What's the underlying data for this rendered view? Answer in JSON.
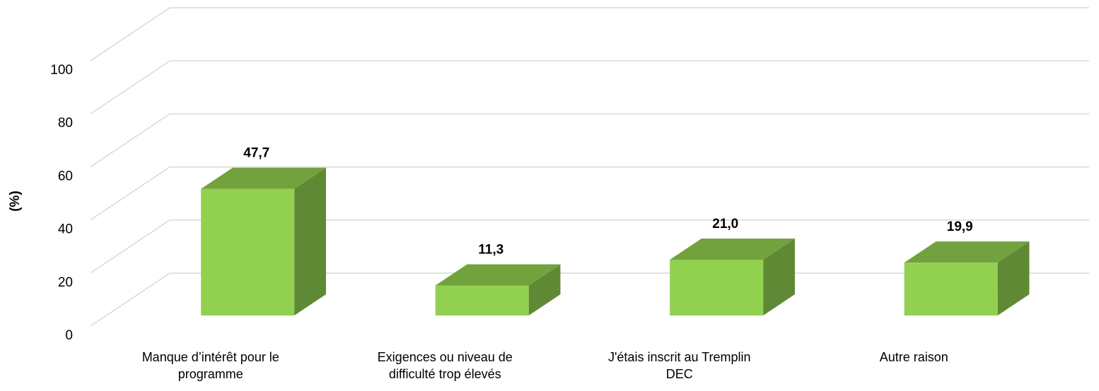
{
  "chart_data": {
    "type": "bar3d",
    "y_label": "(%)",
    "categories": [
      "Manque d’intérêt pour le programme",
      "Exigences ou niveau de difficulté trop élevés",
      "J'étais inscrit au Tremplin DEC",
      "Autre raison"
    ],
    "values": [
      47.7,
      11.3,
      21.0,
      19.9
    ],
    "value_labels": [
      "47,7",
      "11,3",
      "21,0",
      "19,9"
    ],
    "color": "#92d050",
    "ylim": [
      0,
      100
    ],
    "yticks": [
      0,
      20,
      40,
      60,
      80,
      100
    ],
    "grid": true
  }
}
